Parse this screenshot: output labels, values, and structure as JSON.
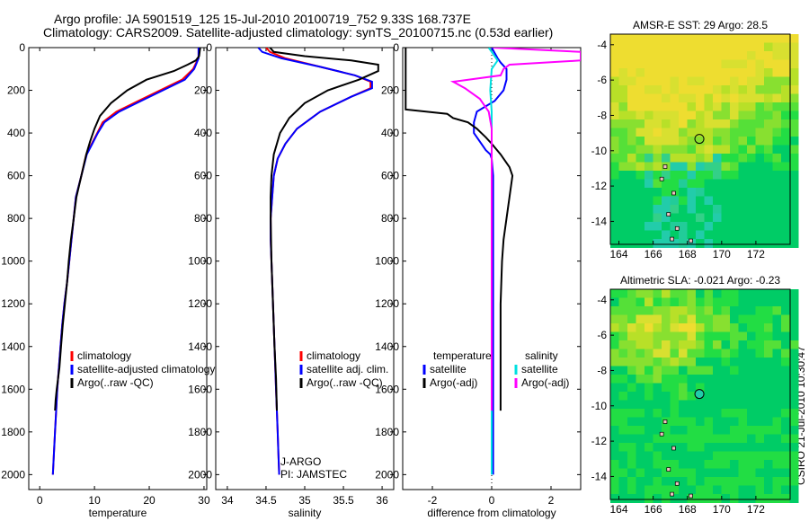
{
  "header": {
    "line1": "Argo profile: JA 5901519_125 15-Jul-2010 20100719_752 9.33S 168.737E",
    "line2": "Climatology: CARS2009. Satellite-adjusted climatology: synTS_20100715.nc (0.53d earlier)"
  },
  "footer_text": "CSIRO 21-Jul-2010 10:30:47",
  "chart_data": [
    {
      "type": "line",
      "id": "temperature",
      "xlabel": "temperature",
      "xlim": [
        -2,
        30.5
      ],
      "ylim": [
        0,
        2070
      ],
      "xticks": [
        0,
        10,
        20,
        30
      ],
      "yticks": [
        0,
        200,
        400,
        600,
        800,
        1000,
        1200,
        1400,
        1600,
        1800,
        2000
      ],
      "y_reversed": true,
      "legend": [
        "climatology",
        "satellite-adjusted climatology",
        "Argo(..raw -QC)"
      ],
      "series": [
        {
          "name": "climatology",
          "color": "#ff0000",
          "x": [
            29.0,
            29.0,
            28.6,
            28.0,
            26.0,
            22.0,
            18.0,
            14.0,
            11.5,
            10.5,
            9.5,
            8.5,
            7.6,
            6.6,
            6.2,
            5.8,
            5.4,
            5.0,
            4.5,
            4.1,
            3.8,
            3.5,
            3.2,
            3.0,
            2.8,
            2.6,
            2.5,
            2.4
          ],
          "y": [
            0,
            50,
            70,
            100,
            150,
            200,
            250,
            300,
            350,
            400,
            450,
            500,
            600,
            700,
            800,
            900,
            1000,
            1100,
            1200,
            1300,
            1400,
            1500,
            1600,
            1700,
            1800,
            1900,
            1950,
            2000
          ]
        },
        {
          "name": "satellite-adjusted climatology",
          "color": "#0000ff",
          "x": [
            29.0,
            29.0,
            28.7,
            28.2,
            26.5,
            22.5,
            18.5,
            14.5,
            11.8,
            10.6,
            9.6,
            8.6,
            7.6,
            6.6,
            6.2,
            5.8,
            5.4,
            5.0,
            4.5,
            4.1,
            3.8,
            3.5,
            3.2,
            3.0,
            2.8,
            2.6,
            2.5,
            2.4
          ],
          "y": [
            0,
            50,
            70,
            100,
            150,
            200,
            250,
            300,
            350,
            400,
            450,
            500,
            600,
            700,
            800,
            900,
            1000,
            1100,
            1200,
            1300,
            1400,
            1500,
            1600,
            1700,
            1800,
            1900,
            1950,
            2000
          ]
        },
        {
          "name": "Argo(..raw -QC)",
          "color": "#000000",
          "x": [
            29.3,
            29.1,
            28.5,
            27.0,
            24.5,
            19.5,
            16.0,
            13.0,
            11.0,
            10.0,
            9.2,
            8.5,
            7.6,
            6.7,
            6.2,
            5.7,
            5.3,
            5.0,
            4.6,
            4.2,
            3.9,
            3.6,
            3.3,
            3.1,
            2.9,
            2.8
          ],
          "y": [
            0,
            40,
            60,
            80,
            110,
            150,
            200,
            260,
            320,
            380,
            440,
            500,
            600,
            700,
            800,
            900,
            1000,
            1100,
            1200,
            1300,
            1400,
            1500,
            1560,
            1600,
            1650,
            1700
          ]
        }
      ]
    },
    {
      "type": "line",
      "id": "salinity",
      "xlabel": "salinity",
      "xlim": [
        33.85,
        36.15
      ],
      "ylim": [
        0,
        2070
      ],
      "xticks": [
        34,
        34.5,
        35,
        35.5,
        36
      ],
      "yticks": [
        0,
        200,
        400,
        600,
        800,
        1000,
        1200,
        1400,
        1600,
        1800,
        2000
      ],
      "y_reversed": true,
      "legend": [
        "climatology",
        "satellite adj. clim.",
        "Argo(..raw -QC)"
      ],
      "annotation": [
        "J-ARGO",
        "PI: JAMSTEC"
      ],
      "series": [
        {
          "name": "climatology",
          "color": "#ff0000",
          "x": [
            34.5,
            34.55,
            34.75,
            35.2,
            35.65,
            35.85,
            35.85,
            35.6,
            35.2,
            34.9,
            34.75,
            34.65,
            34.6,
            34.58,
            34.56,
            34.56,
            34.57,
            34.59,
            34.61,
            34.63,
            34.64,
            34.65,
            34.66,
            34.67
          ],
          "y": [
            0,
            20,
            50,
            90,
            130,
            160,
            190,
            230,
            300,
            380,
            450,
            520,
            600,
            700,
            800,
            900,
            1000,
            1200,
            1400,
            1600,
            1700,
            1800,
            1900,
            2000
          ]
        },
        {
          "name": "satellite adj. clim.",
          "color": "#0000ff",
          "x": [
            34.4,
            34.45,
            34.7,
            35.2,
            35.65,
            35.87,
            35.87,
            35.6,
            35.2,
            34.9,
            34.75,
            34.65,
            34.6,
            34.58,
            34.56,
            34.56,
            34.57,
            34.59,
            34.61,
            34.63,
            34.64,
            34.65,
            34.66,
            34.67
          ],
          "y": [
            0,
            20,
            50,
            90,
            130,
            160,
            190,
            230,
            300,
            380,
            450,
            520,
            600,
            700,
            800,
            900,
            1000,
            1200,
            1400,
            1600,
            1700,
            1800,
            1900,
            2000
          ]
        },
        {
          "name": "Argo(..raw -QC)",
          "color": "#000000",
          "x": [
            34.55,
            34.6,
            35.0,
            35.6,
            35.95,
            35.95,
            35.7,
            35.3,
            35.0,
            34.8,
            34.68,
            34.6,
            34.57,
            34.56,
            34.56,
            34.57,
            34.59,
            34.61,
            34.63,
            34.64
          ],
          "y": [
            0,
            20,
            40,
            60,
            80,
            110,
            150,
            200,
            260,
            330,
            400,
            500,
            600,
            700,
            800,
            1000,
            1200,
            1400,
            1550,
            1700
          ]
        }
      ]
    },
    {
      "type": "line",
      "id": "difference",
      "xlabel": "difference from climatology",
      "xlim": [
        -3,
        3
      ],
      "ylim": [
        0,
        2070
      ],
      "xticks": [
        -2,
        0,
        2
      ],
      "yticks": [
        0,
        200,
        400,
        600,
        800,
        1000,
        1200,
        1400,
        1600,
        1800,
        2000
      ],
      "y_reversed": true,
      "zero_line": true,
      "legend_left": [
        "temperature",
        "satellite",
        "Argo(-adj)"
      ],
      "legend_right": [
        "salinity",
        "satellite",
        "Argo(-adj)"
      ],
      "series": [
        {
          "name": "temperature satellite",
          "color": "#0000ff",
          "x": [
            0.0,
            0.2,
            0.3,
            0.5,
            0.5,
            0.4,
            0.1,
            -0.5,
            -0.6,
            -0.6,
            -0.4,
            -0.2,
            -0.05,
            0.0,
            0.05,
            0.05,
            0.05,
            0.05,
            0.05,
            0.05
          ],
          "y": [
            0,
            50,
            70,
            100,
            150,
            200,
            250,
            300,
            350,
            400,
            440,
            480,
            500,
            520,
            600,
            800,
            1000,
            1400,
            1800,
            2000
          ]
        },
        {
          "name": "temperature Argo(-adj)",
          "color": "#000000",
          "x": [
            -2.9,
            -2.9,
            -2.9,
            -1.5,
            -1.3,
            -0.8,
            -0.5,
            -0.2,
            0.0,
            0.3,
            0.6,
            0.7,
            0.6,
            0.5,
            0.4,
            0.35,
            0.3,
            0.3,
            0.3
          ],
          "y": [
            0,
            5,
            290,
            310,
            330,
            350,
            380,
            420,
            450,
            500,
            560,
            600,
            700,
            800,
            900,
            1000,
            1200,
            1400,
            1700
          ]
        },
        {
          "name": "salinity satellite",
          "color": "#00e0e0",
          "x": [
            -0.1,
            0.05,
            0.2,
            0.0,
            -0.05,
            0.0,
            0.0,
            0.0,
            0.0,
            0.0,
            0.0,
            0.0
          ],
          "y": [
            0,
            30,
            60,
            100,
            200,
            300,
            400,
            600,
            1000,
            1400,
            1800,
            2000
          ]
        },
        {
          "name": "salinity Argo(-adj)",
          "color": "#ff00ff",
          "x": [
            0.05,
            3.0,
            3.0,
            0.6,
            0.4,
            0.3,
            -1.3,
            -0.9,
            -0.4,
            -0.1,
            0.0,
            0.0,
            0.0
          ],
          "y": [
            0,
            20,
            60,
            80,
            100,
            130,
            160,
            190,
            240,
            300,
            380,
            500,
            1700
          ]
        }
      ]
    }
  ],
  "maps": [
    {
      "title": "AMSR-E SST: 29 Argo: 28.5",
      "xticks": [
        164,
        166,
        168,
        170,
        172
      ],
      "yticks": [
        -4,
        -6,
        -8,
        -10,
        -12,
        -14
      ],
      "xlim": [
        163.5,
        174
      ],
      "ylim": [
        -15.3,
        -3.4
      ],
      "marker": [
        168.7,
        -9.33
      ]
    },
    {
      "title": "Altimetric SLA: -0.021 Argo: -0.23",
      "xticks": [
        164,
        166,
        168,
        170,
        172
      ],
      "yticks": [
        -4,
        -6,
        -8,
        -10,
        -12,
        -14
      ],
      "xlim": [
        163.5,
        174
      ],
      "ylim": [
        -15.3,
        -3.4
      ],
      "marker": [
        168.7,
        -9.33
      ]
    }
  ]
}
